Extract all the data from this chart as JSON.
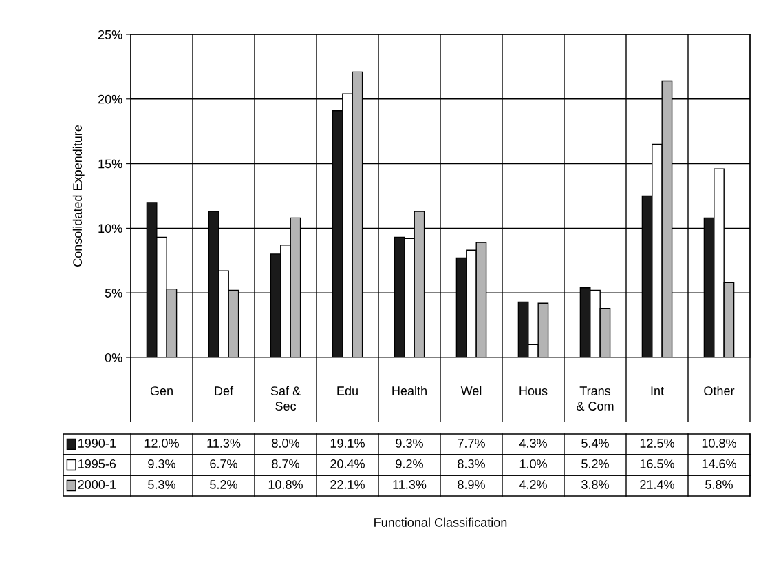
{
  "chart_data": {
    "type": "bar",
    "annotations": [
      "Functional Classification"
    ],
    "ylabel": "Consolidated Expenditure",
    "categories": [
      "Gen",
      "Def",
      "Saf &\nSec",
      "Edu",
      "Health",
      "Wel",
      "Hous",
      "Trans\n& Com",
      "Int",
      "Other"
    ],
    "series": [
      {
        "name": "1990-1",
        "color": "#1a1a1a",
        "values": [
          12.0,
          11.3,
          8.0,
          19.1,
          9.3,
          7.7,
          4.3,
          5.4,
          12.5,
          10.8
        ],
        "value_labels": [
          "12.0%",
          "11.3%",
          "8.0%",
          "19.1%",
          "9.3%",
          "7.7%",
          "4.3%",
          "5.4%",
          "12.5%",
          "10.8%"
        ]
      },
      {
        "name": "1995-6",
        "color": "#ffffff",
        "values": [
          9.3,
          6.7,
          8.7,
          20.4,
          9.2,
          8.3,
          1.0,
          5.2,
          16.5,
          14.6
        ],
        "value_labels": [
          "9.3%",
          "6.7%",
          "8.7%",
          "20.4%",
          "9.2%",
          "8.3%",
          "1.0%",
          "5.2%",
          "16.5%",
          "14.6%"
        ]
      },
      {
        "name": "2000-1",
        "color": "#b4b4b4",
        "values": [
          5.3,
          5.2,
          10.8,
          22.1,
          11.3,
          8.9,
          4.2,
          3.8,
          21.4,
          5.8
        ],
        "value_labels": [
          "5.3%",
          "5.2%",
          "10.8%",
          "22.1%",
          "11.3%",
          "8.9%",
          "4.2%",
          "3.8%",
          "21.4%",
          "5.8%"
        ]
      }
    ],
    "ylim": [
      0,
      25
    ],
    "yticks": [
      {
        "value": 0,
        "label": "0%"
      },
      {
        "value": 5,
        "label": "5%"
      },
      {
        "value": 10,
        "label": "10%"
      },
      {
        "value": 15,
        "label": "15%"
      },
      {
        "value": 20,
        "label": "20%"
      },
      {
        "value": 25,
        "label": "25%"
      }
    ],
    "grid": "y",
    "legend": "bottom"
  }
}
